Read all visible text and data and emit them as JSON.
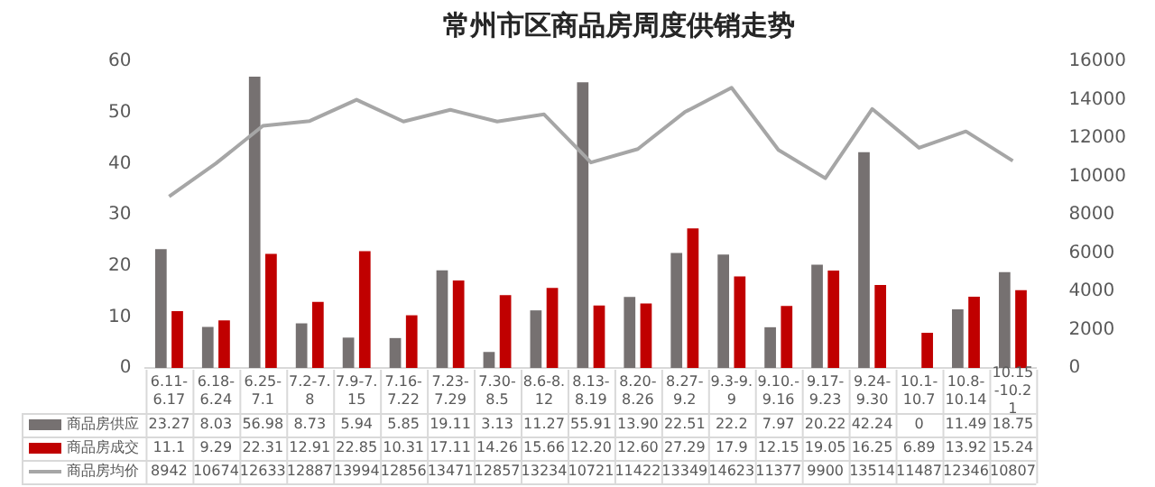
{
  "chart_data": {
    "type": "bar",
    "title": "常州市区商品房周度供销走势",
    "categories": [
      "6.11-6.17",
      "6.18-6.24",
      "6.25-7.1",
      "7.2-7.8",
      "7.9-7.15",
      "7.16-7.22",
      "7.23-7.29",
      "7.30-8.5",
      "8.6-8.12",
      "8.13-8.19",
      "8.20-8.26",
      "8.27-9.2",
      "9.3-9.9",
      "9.10.-9.16",
      "9.17-9.23",
      "9.24-9.30",
      "10.1-10.7",
      "10.8-10.14",
      "10.15-10.21"
    ],
    "series": [
      {
        "name": "商品房供应",
        "color": "#767171",
        "values": [
          23.27,
          8.03,
          56.98,
          8.73,
          5.94,
          5.85,
          19.11,
          3.13,
          11.27,
          55.91,
          13.9,
          22.51,
          22.2,
          7.97,
          20.22,
          42.24,
          0,
          11.49,
          18.75
        ],
        "value_labels": [
          "23.27",
          "8.03",
          "56.98",
          "8.73",
          "5.94",
          "5.85",
          "19.11",
          "3.13",
          "11.27",
          "55.91",
          "13.90",
          "22.51",
          "22.2",
          "7.97",
          "20.22",
          "42.24",
          "0",
          "11.49",
          "18.75"
        ]
      },
      {
        "name": "商品房成交",
        "color": "#c00000",
        "values": [
          11.1,
          9.29,
          22.31,
          12.91,
          22.85,
          10.31,
          17.11,
          14.26,
          15.66,
          12.2,
          12.6,
          27.29,
          17.9,
          12.15,
          19.05,
          16.25,
          6.89,
          13.92,
          15.24
        ],
        "value_labels": [
          "11.1",
          "9.29",
          "22.31",
          "12.91",
          "22.85",
          "10.31",
          "17.11",
          "14.26",
          "15.66",
          "12.20",
          "12.60",
          "27.29",
          "17.9",
          "12.15",
          "19.05",
          "16.25",
          "6.89",
          "13.92",
          "15.24"
        ]
      },
      {
        "name": "商品房均价",
        "type": "line",
        "axis": "y2",
        "color": "#a6a6a6",
        "values": [
          8942,
          10674,
          12633,
          12887,
          13994,
          12856,
          13471,
          12857,
          13234,
          10721,
          11422,
          13349,
          14623,
          11377,
          9900,
          13514,
          11487,
          12346,
          10807
        ]
      }
    ],
    "ylim": [
      0,
      60
    ],
    "yticks": [
      0,
      10,
      20,
      30,
      40,
      50,
      60
    ],
    "y2lim": [
      0,
      16000
    ],
    "y2ticks": [
      0,
      2000,
      4000,
      6000,
      8000,
      10000,
      12000,
      14000,
      16000
    ],
    "grid": false,
    "legend": "bottom",
    "data_labels": true,
    "marker": "none"
  }
}
